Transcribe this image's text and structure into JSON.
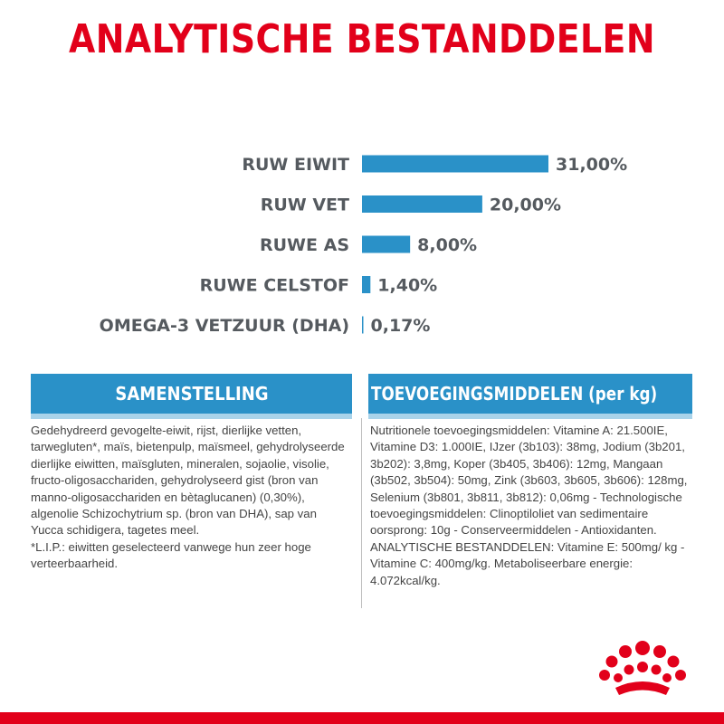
{
  "chart_data": {
    "type": "bar",
    "title": "ANALYTISCHE BESTANDDELEN",
    "orientation": "horizontal",
    "categories": [
      "RUW EIWIT",
      "RUW VET",
      "RUWE AS",
      "RUWE CELSTOF",
      "OMEGA-3 VETZUUR (DHA)"
    ],
    "values": [
      31.0,
      20.0,
      8.0,
      1.4,
      0.17
    ],
    "value_labels": [
      "31,00%",
      "20,00%",
      "8,00%",
      "1,40%",
      "0,17%"
    ],
    "unit": "%",
    "grid": false,
    "legend": "none"
  },
  "colors": {
    "title": "#e2001a",
    "bar": "#2a91c8",
    "text": "#555a5f",
    "bottom_line": "#e2001a"
  },
  "left_panel": {
    "heading": "SAMENSTELLING",
    "body": "Gedehydreerd gevogelte-eiwit, rijst, dierlijke vetten, tarwegluten*, maïs, bietenpulp, maïsmeel, gehydrolyseerde dierlijke eiwitten, maïsgluten, mineralen, sojaolie, visolie, fructo-oligosacchariden, gehydrolyseerd gist (bron van manno-oligosacchariden en bètaglucanen) (0,30%), algenolie Schizochytrium sp. (bron van DHA), sap van Yucca schidigera, tagetes meel.\n*L.I.P.: eiwitten geselecteerd vanwege hun zeer hoge verteerbaarheid."
  },
  "right_panel": {
    "heading": "TOEVOEGINGSMIDDELEN (per kg)",
    "body": "Nutritionele toevoegingsmiddelen: Vitamine A: 21.500IE, Vitamine D3: 1.000IE, IJzer (3b103): 38mg, Jodium (3b201, 3b202): 3,8mg, Koper (3b405, 3b406): 12mg, Mangaan (3b502, 3b504): 50mg, Zink (3b603, 3b605, 3b606): 128mg, Selenium (3b801, 3b811, 3b812): 0,06mg - Technologische toevoegingsmiddelen: Clinoptiloliet van sedimentaire oorsprong: 10g - Conserveermiddelen - Antioxidanten. ANALYTISCHE BESTANDDELEN: Vitamine E: 500mg/ kg - Vitamine C: 400mg/kg. Metaboliseerbare energie: 4.072kcal/kg."
  },
  "logo": {
    "icon": "royal-canin-crown-icon"
  }
}
